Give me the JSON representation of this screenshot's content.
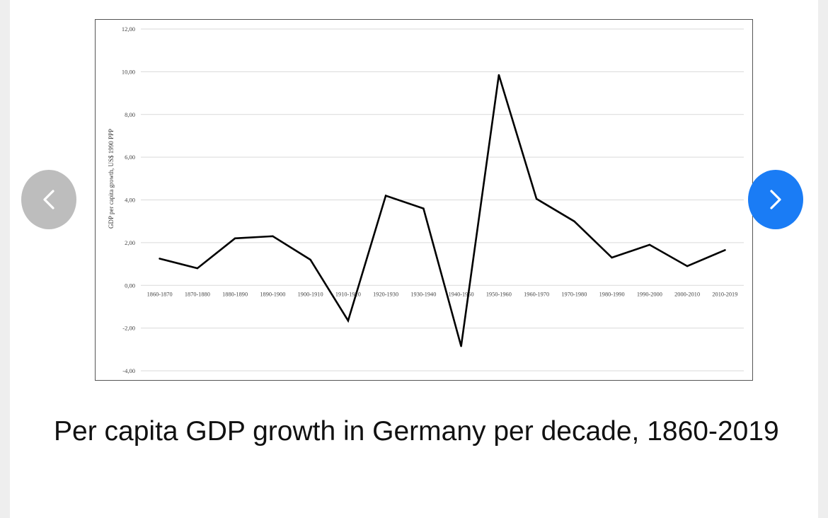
{
  "colors": {
    "prev_button": "#bdbdbd",
    "next_button": "#1a7cf5",
    "line": "#000000",
    "grid": "#d9d9d9"
  },
  "carousel": {
    "prev_icon": "chevron-left-icon",
    "next_icon": "chevron-right-icon"
  },
  "caption": "Per capita GDP growth in Germany per decade, 1860-2019",
  "chart_data": {
    "type": "line",
    "title": "",
    "xlabel": "",
    "ylabel": "GDP per capita growth, US$ 1990 PPP",
    "ylim": [
      -4,
      12
    ],
    "yticks": [
      "-4,00",
      "-2,00",
      "0,00",
      "2,00",
      "4,00",
      "6,00",
      "8,00",
      "10,00",
      "12,00"
    ],
    "grid": true,
    "legend": "none",
    "categories": [
      "1860-1870",
      "1870-1880",
      "1880-1890",
      "1890-1900",
      "1900-1910",
      "1910-1920",
      "1920-1930",
      "1930-1940",
      "1940-1950",
      "1950-1960",
      "1960-1970",
      "1970-1980",
      "1980-1990",
      "1990-2000",
      "2000-2010",
      "2010-2019"
    ],
    "series": [
      {
        "values": [
          1.25,
          0.8,
          2.2,
          2.3,
          1.2,
          -1.65,
          4.2,
          3.6,
          -2.85,
          9.85,
          4.05,
          3.0,
          1.3,
          1.9,
          0.9,
          1.65
        ]
      }
    ]
  }
}
